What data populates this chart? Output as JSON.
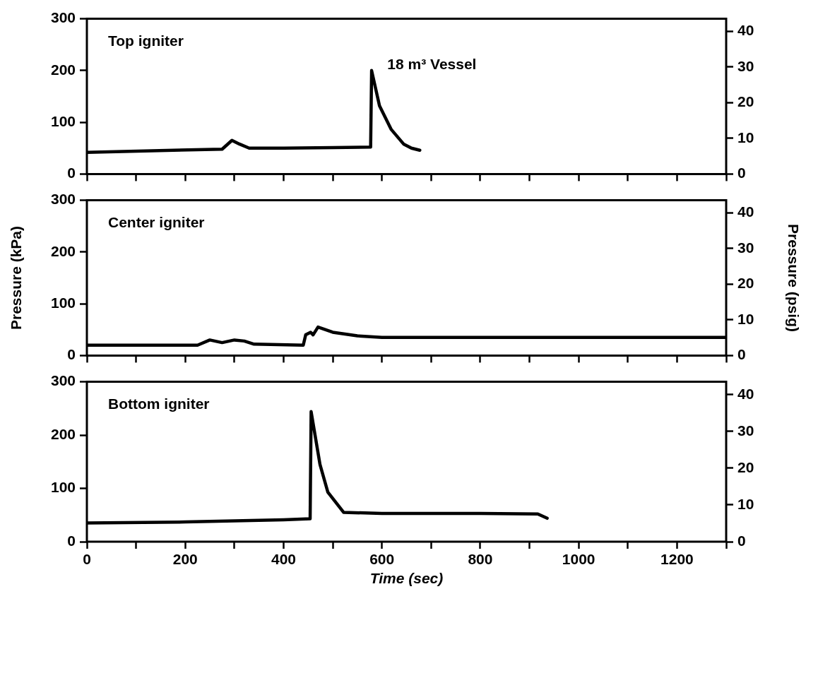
{
  "chart_data": [
    {
      "type": "line",
      "annotations": [
        "Top igniter",
        "18 m³ Vessel"
      ],
      "series": [
        {
          "color": "#000000",
          "x": [
            0,
            275,
            295,
            310,
            330,
            400,
            500,
            577,
            579,
            595,
            619,
            644,
            660,
            677
          ],
          "values": [
            42,
            48,
            65,
            58,
            50,
            50,
            51,
            52,
            200,
            132,
            86,
            58,
            50,
            46
          ]
        }
      ],
      "xlim": [
        0,
        1300
      ],
      "xticks": [
        0,
        {
          "value": 100,
          "label": null
        },
        200,
        {
          "value": 300,
          "label": null
        },
        400,
        {
          "value": 500,
          "label": null
        },
        600,
        {
          "value": 700,
          "label": null
        },
        800,
        {
          "value": 900,
          "label": null
        },
        1000,
        {
          "value": 1100,
          "label": null
        },
        1200,
        {
          "value": 1300,
          "label": null
        }
      ],
      "ylim": [
        0,
        300
      ],
      "yticks": [
        0,
        100,
        200,
        300
      ],
      "y2lim": [
        0,
        43.5
      ],
      "y2ticks": [
        0,
        10,
        20,
        30,
        40
      ],
      "tick_labels": "y"
    },
    {
      "type": "line",
      "annotations": [
        "Center igniter"
      ],
      "ylabel": "Pressure (kPa)",
      "y2label": "Pressure (psig)",
      "series": [
        {
          "color": "#000000",
          "x": [
            0,
            225,
            250,
            275,
            300,
            320,
            340,
            440,
            445,
            455,
            460,
            470,
            500,
            550,
            600,
            800,
            1000,
            1300
          ],
          "values": [
            20,
            20,
            30,
            25,
            30,
            28,
            22,
            20,
            40,
            45,
            40,
            55,
            45,
            38,
            35,
            35,
            35,
            35
          ]
        }
      ],
      "xlim": [
        0,
        1300
      ],
      "xticks": [
        0,
        {
          "value": 100,
          "label": null
        },
        200,
        {
          "value": 300,
          "label": null
        },
        400,
        {
          "value": 500,
          "label": null
        },
        600,
        {
          "value": 700,
          "label": null
        },
        800,
        {
          "value": 900,
          "label": null
        },
        1000,
        {
          "value": 1100,
          "label": null
        },
        1200,
        {
          "value": 1300,
          "label": null
        }
      ],
      "ylim": [
        0,
        300
      ],
      "yticks": [
        0,
        100,
        200,
        300
      ],
      "y2lim": [
        0,
        43.5
      ],
      "y2ticks": [
        0,
        10,
        20,
        30,
        40
      ],
      "tick_labels": "y"
    },
    {
      "type": "line",
      "annotations": [
        "Bottom igniter"
      ],
      "xlabel": "Time (sec)",
      "series": [
        {
          "color": "#000000",
          "x": [
            0,
            200,
            400,
            454,
            456,
            474,
            490,
            522,
            600,
            800,
            917,
            936
          ],
          "values": [
            35,
            37,
            41,
            43,
            244,
            145,
            93,
            55,
            53,
            53,
            52,
            44
          ]
        }
      ],
      "xlim": [
        0,
        1300
      ],
      "xticks": [
        0,
        {
          "value": 100,
          "label": null
        },
        200,
        {
          "value": 300,
          "label": null
        },
        400,
        {
          "value": 500,
          "label": null
        },
        600,
        {
          "value": 700,
          "label": null
        },
        800,
        {
          "value": 900,
          "label": null
        },
        1000,
        {
          "value": 1100,
          "label": null
        },
        1200,
        {
          "value": 1300,
          "label": null
        }
      ],
      "ylim": [
        0,
        300
      ],
      "yticks": [
        0,
        100,
        200,
        300
      ],
      "y2lim": [
        0,
        43.5
      ],
      "y2ticks": [
        0,
        10,
        20,
        30,
        40
      ]
    }
  ]
}
